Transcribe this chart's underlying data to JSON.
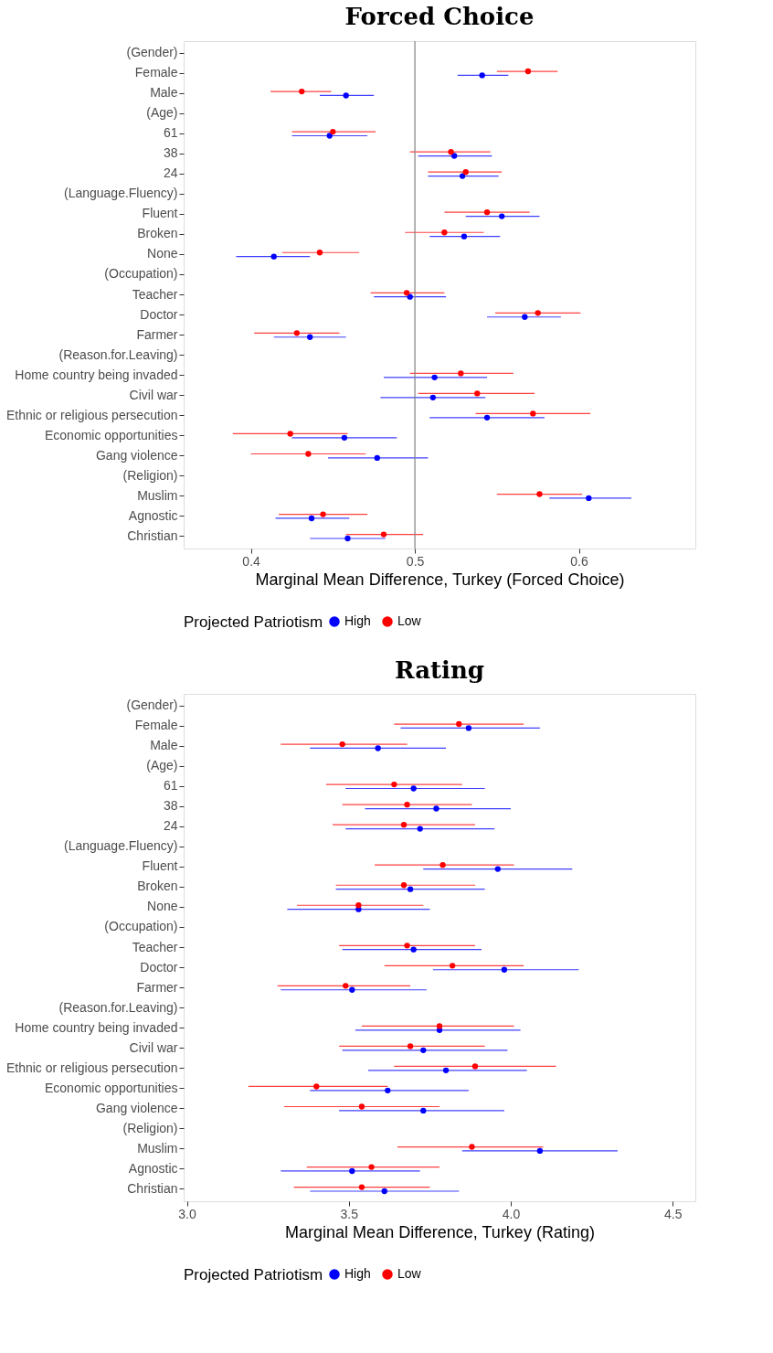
{
  "chart_data": [
    {
      "type": "scatter",
      "orientation": "horizontal",
      "title": "Forced Choice",
      "xlabel": "Marginal Mean Difference, Turkey (Forced Choice)",
      "legend_title": "Projected Patriotism",
      "legend": "bottom",
      "marker": "circle",
      "grid": false,
      "categories": [
        "(Gender)",
        "Female",
        "Male",
        "(Age)",
        "61",
        "38",
        "24",
        "(Language.Fluency)",
        "Fluent",
        "Broken",
        "None",
        "(Occupation)",
        "Teacher",
        "Doctor",
        "Farmer",
        "(Reason.for.Leaving)",
        "Home country being invaded",
        "Civil war",
        "Ethnic or religious persecution",
        "Economic opportunities",
        "Gang violence",
        "(Religion)",
        "Muslim",
        "Agnostic",
        "Christian"
      ],
      "series": [
        {
          "name": "High",
          "color": "#0000ff",
          "values": [
            null,
            0.541,
            0.458,
            null,
            0.448,
            0.524,
            0.529,
            null,
            0.553,
            0.53,
            0.414,
            null,
            0.497,
            0.567,
            0.436,
            null,
            0.512,
            0.511,
            0.544,
            0.457,
            0.477,
            null,
            0.606,
            0.437,
            0.459
          ],
          "errors": [
            null,
            [
              0.526,
              0.557
            ],
            [
              0.442,
              0.475
            ],
            null,
            [
              0.425,
              0.471
            ],
            [
              0.502,
              0.547
            ],
            [
              0.508,
              0.551
            ],
            null,
            [
              0.531,
              0.576
            ],
            [
              0.509,
              0.552
            ],
            [
              0.391,
              0.436
            ],
            null,
            [
              0.475,
              0.519
            ],
            [
              0.544,
              0.589
            ],
            [
              0.414,
              0.458
            ],
            null,
            [
              0.481,
              0.544
            ],
            [
              0.479,
              0.543
            ],
            [
              0.509,
              0.579
            ],
            [
              0.425,
              0.489
            ],
            [
              0.447,
              0.508
            ],
            null,
            [
              0.582,
              0.632
            ],
            [
              0.415,
              0.46
            ],
            [
              0.436,
              0.482
            ]
          ]
        },
        {
          "name": "Low",
          "color": "#ff0000",
          "values": [
            null,
            0.569,
            0.431,
            null,
            0.45,
            0.522,
            0.531,
            null,
            0.544,
            0.518,
            0.442,
            null,
            0.495,
            0.575,
            0.428,
            null,
            0.528,
            0.538,
            0.572,
            0.424,
            0.435,
            null,
            0.576,
            0.444,
            0.481
          ],
          "errors": [
            null,
            [
              0.55,
              0.587
            ],
            [
              0.412,
              0.449
            ],
            null,
            [
              0.425,
              0.476
            ],
            [
              0.497,
              0.546
            ],
            [
              0.508,
              0.553
            ],
            null,
            [
              0.518,
              0.57
            ],
            [
              0.494,
              0.542
            ],
            [
              0.419,
              0.466
            ],
            null,
            [
              0.473,
              0.518
            ],
            [
              0.549,
              0.601
            ],
            [
              0.402,
              0.454
            ],
            null,
            [
              0.497,
              0.56
            ],
            [
              0.502,
              0.573
            ],
            [
              0.537,
              0.607
            ],
            [
              0.389,
              0.459
            ],
            [
              0.4,
              0.47
            ],
            null,
            [
              0.55,
              0.602
            ],
            [
              0.417,
              0.471
            ],
            [
              0.458,
              0.505
            ]
          ]
        }
      ],
      "xlim": [
        0.359,
        0.671
      ],
      "xticks": [
        0.4,
        0.5,
        0.6
      ],
      "ref_lines": [
        {
          "axis": "x",
          "value": 0.5,
          "color": "#808080"
        }
      ]
    },
    {
      "type": "scatter",
      "orientation": "horizontal",
      "title": "Rating",
      "xlabel": "Marginal Mean Difference, Turkey (Rating)",
      "legend_title": "Projected Patriotism",
      "legend": "bottom",
      "marker": "circle",
      "grid": false,
      "categories": [
        "(Gender)",
        "Female",
        "Male",
        "(Age)",
        "61",
        "38",
        "24",
        "(Language.Fluency)",
        "Fluent",
        "Broken",
        "None",
        "(Occupation)",
        "Teacher",
        "Doctor",
        "Farmer",
        "(Reason.for.Leaving)",
        "Home country being invaded",
        "Civil war",
        "Ethnic or religious persecution",
        "Economic opportunities",
        "Gang violence",
        "(Religion)",
        "Muslim",
        "Agnostic",
        "Christian"
      ],
      "series": [
        {
          "name": "High",
          "color": "#0000ff",
          "values": [
            null,
            3.87,
            3.59,
            null,
            3.7,
            3.77,
            3.72,
            null,
            3.96,
            3.69,
            3.53,
            null,
            3.7,
            3.98,
            3.51,
            null,
            3.78,
            3.73,
            3.8,
            3.62,
            3.73,
            null,
            4.09,
            3.51,
            3.61
          ],
          "errors": [
            null,
            [
              3.66,
              4.09
            ],
            [
              3.38,
              3.8
            ],
            null,
            [
              3.49,
              3.92
            ],
            [
              3.55,
              4.0
            ],
            [
              3.49,
              3.95
            ],
            null,
            [
              3.73,
              4.19
            ],
            [
              3.46,
              3.92
            ],
            [
              3.31,
              3.75
            ],
            null,
            [
              3.48,
              3.91
            ],
            [
              3.76,
              4.21
            ],
            [
              3.29,
              3.74
            ],
            null,
            [
              3.52,
              4.03
            ],
            [
              3.48,
              3.99
            ],
            [
              3.56,
              4.05
            ],
            [
              3.38,
              3.87
            ],
            [
              3.47,
              3.98
            ],
            null,
            [
              3.85,
              4.33
            ],
            [
              3.29,
              3.72
            ],
            [
              3.38,
              3.84
            ]
          ]
        },
        {
          "name": "Low",
          "color": "#ff0000",
          "values": [
            null,
            3.84,
            3.48,
            null,
            3.64,
            3.68,
            3.67,
            null,
            3.79,
            3.67,
            3.53,
            null,
            3.68,
            3.82,
            3.49,
            null,
            3.78,
            3.69,
            3.89,
            3.4,
            3.54,
            null,
            3.88,
            3.57,
            3.54
          ],
          "errors": [
            null,
            [
              3.64,
              4.04
            ],
            [
              3.29,
              3.68
            ],
            null,
            [
              3.43,
              3.85
            ],
            [
              3.48,
              3.88
            ],
            [
              3.45,
              3.89
            ],
            null,
            [
              3.58,
              4.01
            ],
            [
              3.46,
              3.89
            ],
            [
              3.34,
              3.73
            ],
            null,
            [
              3.47,
              3.89
            ],
            [
              3.61,
              4.04
            ],
            [
              3.28,
              3.69
            ],
            null,
            [
              3.54,
              4.01
            ],
            [
              3.47,
              3.92
            ],
            [
              3.64,
              4.14
            ],
            [
              3.19,
              3.62
            ],
            [
              3.3,
              3.78
            ],
            null,
            [
              3.65,
              4.1
            ],
            [
              3.37,
              3.78
            ],
            [
              3.33,
              3.75
            ]
          ]
        }
      ],
      "xlim": [
        2.99,
        4.57
      ],
      "xticks": [
        {
          "value": 3,
          "label": "3.0"
        },
        3.5,
        {
          "value": 4,
          "label": "4.0"
        },
        4.5
      ]
    }
  ]
}
